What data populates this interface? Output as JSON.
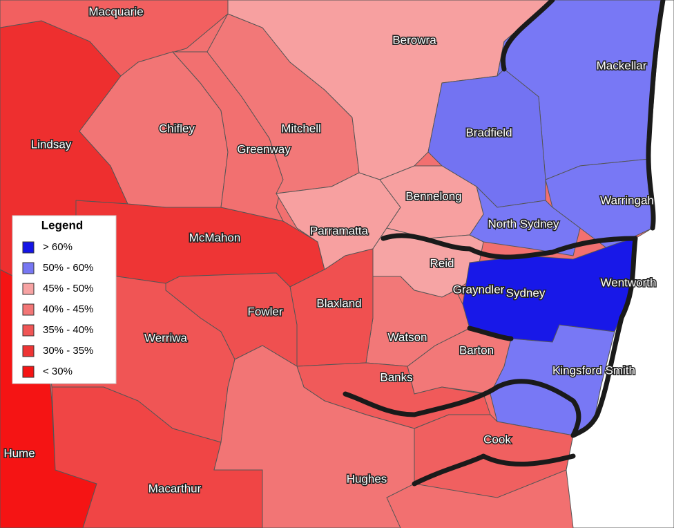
{
  "legend": {
    "title": "Legend",
    "items": [
      {
        "label": "> 60%",
        "color": "#1414e6"
      },
      {
        "label": "50% - 60%",
        "color": "#7777f3"
      },
      {
        "label": "45% - 50%",
        "color": "#f7a3a3"
      },
      {
        "label": "40% - 45%",
        "color": "#f27676"
      },
      {
        "label": "35% - 40%",
        "color": "#f05555"
      },
      {
        "label": "30% - 35%",
        "color": "#ee3434"
      },
      {
        "label": "< 30%",
        "color": "#f51414"
      }
    ]
  },
  "labels": [
    "Macquarie",
    "Berowra",
    "Mackellar",
    "Chifley",
    "Mitchell",
    "Bradfield",
    "Lindsay",
    "Greenway",
    "Bennelong",
    "Warringah",
    "North Sydney",
    "Parramatta",
    "McMahon",
    "Reid",
    "Grayndler",
    "Sydney",
    "Wentworth",
    "Blaxland",
    "Fowler",
    "Werriwa",
    "Watson",
    "Barton",
    "Banks",
    "Kingsford Smith",
    "Hume",
    "Cook",
    "Hughes",
    "Macarthur"
  ]
}
